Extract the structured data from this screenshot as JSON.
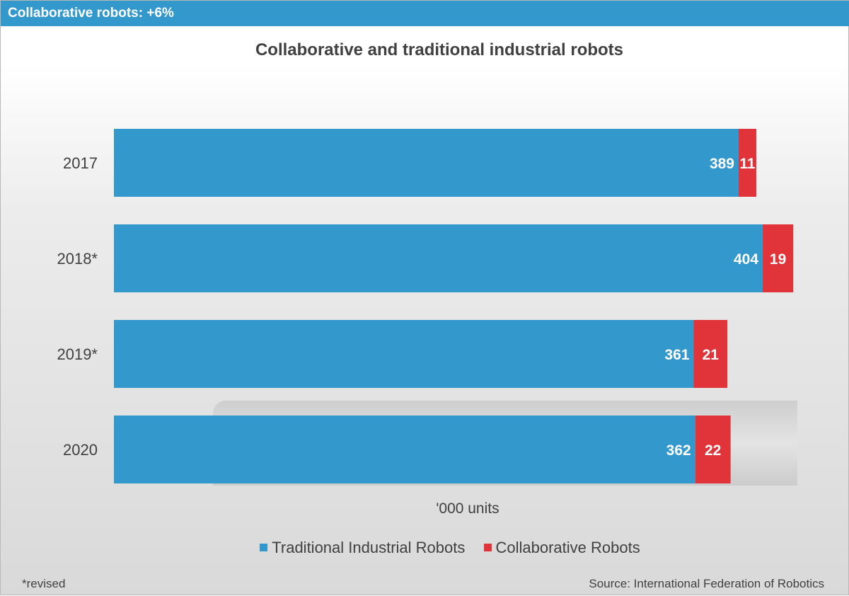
{
  "header": {
    "title": "Collaborative robots: +6%"
  },
  "footer": {
    "note": "*revised",
    "source": "Source: International Federation of Robotics"
  },
  "colors": {
    "traditional": "#3399cc",
    "collaborative": "#e0333a",
    "header": "#3399cc"
  },
  "chart_data": {
    "type": "bar",
    "orientation": "horizontal",
    "stacked": true,
    "title": "Collaborative and traditional industrial robots",
    "unit_label": "'000 units",
    "categories": [
      "2017",
      "2018*",
      "2019*",
      "2020"
    ],
    "series": [
      {
        "name": "Traditional Industrial Robots",
        "values": [
          389,
          404,
          361,
          362
        ]
      },
      {
        "name": "Collaborative Robots",
        "values": [
          11,
          19,
          21,
          22
        ]
      }
    ],
    "legend_position": "bottom",
    "grid": false,
    "x_axis_visible": false
  }
}
